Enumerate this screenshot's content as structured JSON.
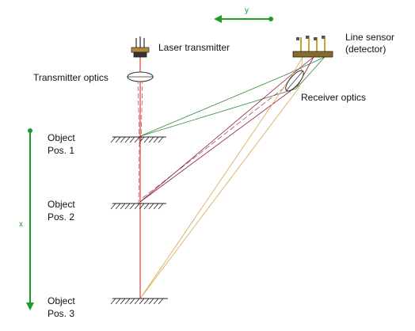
{
  "labels": {
    "axis_y": "y",
    "axis_x": "x",
    "laser_transmitter": "Laser transmitter",
    "transmitter_optics": "Transmitter optics",
    "line_sensor_line1": "Line sensor",
    "line_sensor_line2": "(detector)",
    "receiver_optics": "Receiver optics",
    "object1_line1": "Object",
    "object1_line2": "Pos. 1",
    "object2_line1": "Object",
    "object2_line2": "Pos. 2",
    "object3_line1": "Object",
    "object3_line2": "Pos. 3"
  },
  "colors": {
    "axis_arrow": "#1f9b2a",
    "laser_beam": "#c41f1f",
    "pos1_ray": "#2f8a3a",
    "pos2_ray": "#8a1c3a",
    "pos3_ray": "#d6a64a",
    "hatch": "#222222",
    "component": "#333333",
    "sensor_pins": "#c9a235"
  }
}
